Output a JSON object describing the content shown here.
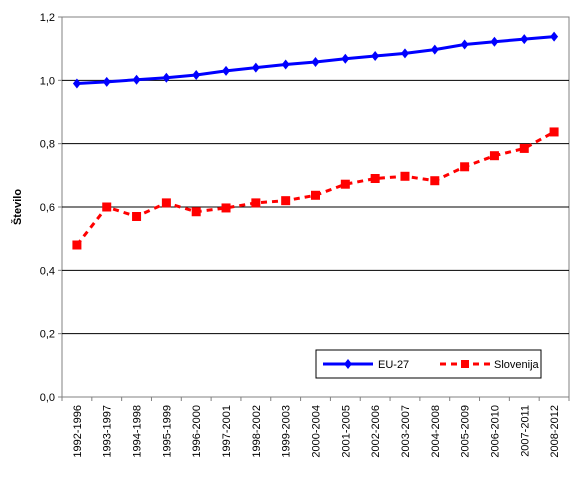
{
  "chart_data": {
    "type": "line",
    "title": "",
    "xlabel": "",
    "ylabel": "Število",
    "ylim": [
      0,
      1.2
    ],
    "yticks": [
      "0,0",
      "0,2",
      "0,4",
      "0,6",
      "0,8",
      "1,0",
      "1,2"
    ],
    "grid": "horizontal",
    "legend_position": "bottom-right",
    "categories": [
      "1992-1996",
      "1993-1997",
      "1994-1998",
      "1995-1999",
      "1996-2000",
      "1997-2001",
      "1998-2002",
      "1999-2003",
      "2000-2004",
      "2001-2005",
      "2002-2006",
      "2003-2007",
      "2004-2008",
      "2005-2009",
      "2006-2010",
      "2007-2011",
      "2008-2012"
    ],
    "series": [
      {
        "name": "EU-27",
        "color": "#0000ff",
        "style": "solid",
        "marker": "diamond",
        "values": [
          0.99,
          0.995,
          1.002,
          1.008,
          1.017,
          1.03,
          1.04,
          1.05,
          1.058,
          1.068,
          1.077,
          1.085,
          1.097,
          1.113,
          1.122,
          1.13,
          1.138
        ]
      },
      {
        "name": "Slovenija",
        "color": "#ff0000",
        "style": "dashed",
        "marker": "square",
        "values": [
          0.48,
          0.6,
          0.57,
          0.613,
          0.585,
          0.597,
          0.613,
          0.62,
          0.637,
          0.672,
          0.69,
          0.697,
          0.683,
          0.727,
          0.762,
          0.785,
          0.837
        ]
      }
    ]
  }
}
